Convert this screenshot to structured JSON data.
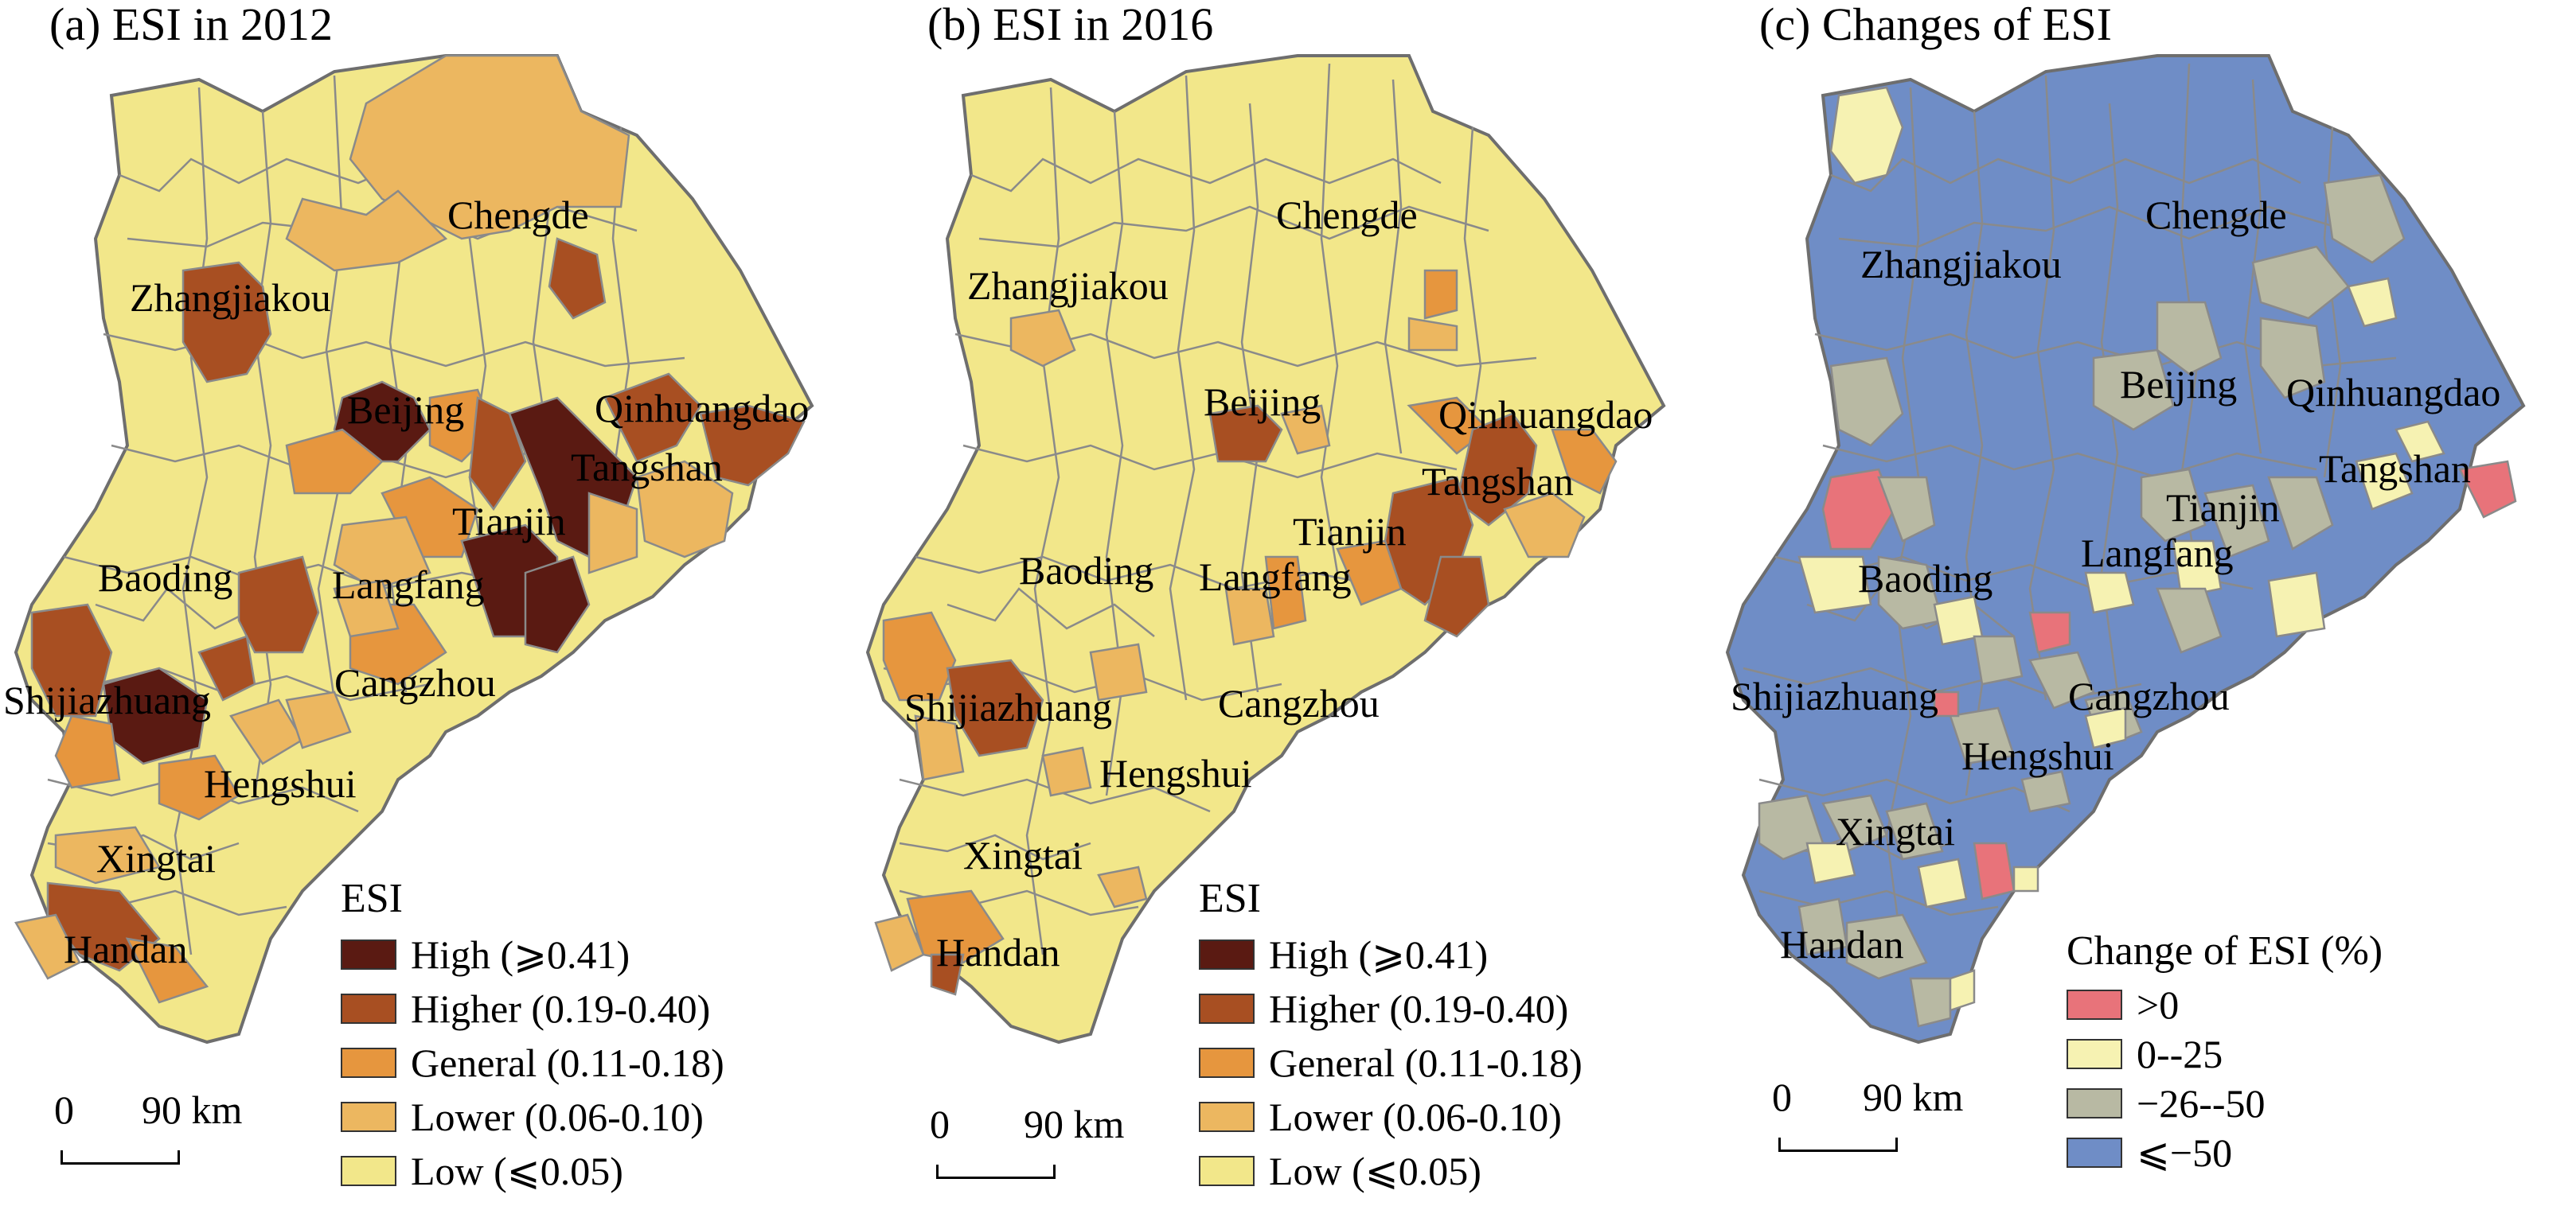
{
  "panels": [
    {
      "title": "(a) ESI in 2012",
      "legend_title": "ESI",
      "legend": [
        {
          "label": "High (⩾0.41)",
          "color": "#5a1a12"
        },
        {
          "label": "Higher (0.19-0.40)",
          "color": "#a84f22"
        },
        {
          "label": "General (0.11-0.18)",
          "color": "#e6963e"
        },
        {
          "label": "Lower (0.06-0.10)",
          "color": "#ecb760"
        },
        {
          "label": "Low (⩽0.05)",
          "color": "#f2e78a"
        }
      ],
      "base_color": "#f2e78a",
      "scale": {
        "zero": "0",
        "km": "90 km"
      },
      "cities": [
        "Chengde",
        "Zhangjiakou",
        "Beijing",
        "Qinhuangdao",
        "Tangshan",
        "Tianjin",
        "Langfang",
        "Baoding",
        "Shijiazhuang",
        "Cangzhou",
        "Hengshui",
        "Xingtai",
        "Handan"
      ]
    },
    {
      "title": "(b) ESI in 2016",
      "legend_title": "ESI",
      "legend": [
        {
          "label": "High (⩾0.41)",
          "color": "#5a1a12"
        },
        {
          "label": "Higher (0.19-0.40)",
          "color": "#a84f22"
        },
        {
          "label": "General (0.11-0.18)",
          "color": "#e6963e"
        },
        {
          "label": "Lower (0.06-0.10)",
          "color": "#ecb760"
        },
        {
          "label": "Low (⩽0.05)",
          "color": "#f2e78a"
        }
      ],
      "base_color": "#f2e78a",
      "scale": {
        "zero": "0",
        "km": "90 km"
      },
      "cities": [
        "Chengde",
        "Zhangjiakou",
        "Beijing",
        "Qinhuangdao",
        "Tangshan",
        "Tianjin",
        "Langfang",
        "Baoding",
        "Shijiazhuang",
        "Cangzhou",
        "Hengshui",
        "Xingtai",
        "Handan"
      ]
    },
    {
      "title": "(c) Changes of ESI",
      "legend_title": "Change of ESI (%)",
      "legend": [
        {
          "label": ">0",
          "color": "#e8737a"
        },
        {
          "label": "0--25",
          "color": "#f6f2b2"
        },
        {
          "label": "−26--50",
          "color": "#b8b9a3"
        },
        {
          "label": "⩽−50",
          "color": "#6f8dc6"
        }
      ],
      "base_color": "#6f8dc6",
      "scale": {
        "zero": "0",
        "km": "90 km"
      },
      "cities": [
        "Chengde",
        "Zhangjiakou",
        "Beijing",
        "Qinhuangdao",
        "Tangshan",
        "Tianjin",
        "Langfang",
        "Baoding",
        "Shijiazhuang",
        "Cangzhou",
        "Hengshui",
        "Xingtai",
        "Handan"
      ]
    }
  ]
}
